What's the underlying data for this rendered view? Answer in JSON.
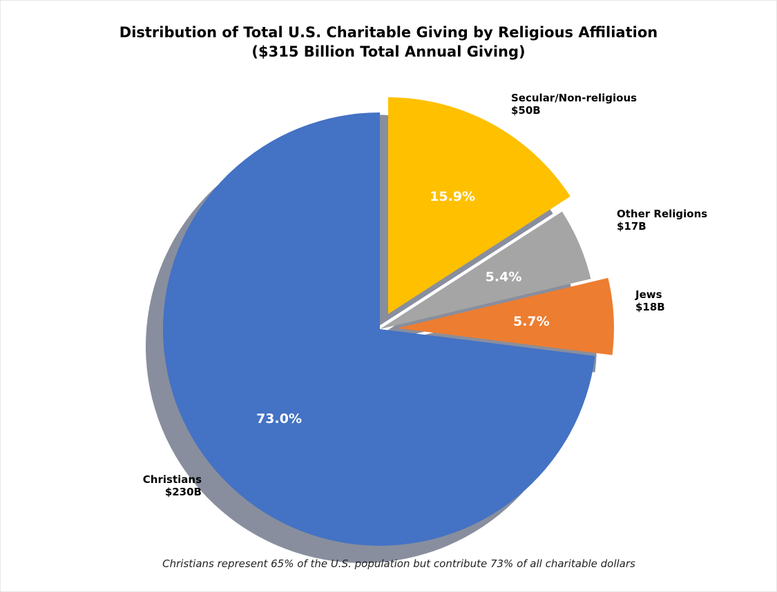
{
  "chart_data": {
    "type": "pie",
    "title": "Distribution of Total U.S. Charitable Giving by Religious Affiliation",
    "subtitle": "($315 Billion Total Annual Giving)",
    "caption": "Christians represent 65% of the U.S. population but contribute 73% of all charitable dollars",
    "slices": [
      {
        "name": "Christians",
        "amount_label": "$230B",
        "value": 230,
        "percent_label": "73.0%",
        "color": "#4472C4",
        "exploded": false
      },
      {
        "name": "Jews",
        "amount_label": "$18B",
        "value": 18,
        "percent_label": "5.7%",
        "color": "#ED7D31",
        "exploded": true
      },
      {
        "name": "Other Religions",
        "amount_label": "$17B",
        "value": 17,
        "percent_label": "5.4%",
        "color": "#A5A5A5",
        "exploded": false
      },
      {
        "name": "Secular/Non-religious",
        "amount_label": "$50B",
        "value": 50,
        "percent_label": "15.9%",
        "color": "#FFC000",
        "exploded": true
      }
    ],
    "shadow": true,
    "start_angle": "top, counter-clockwise"
  }
}
